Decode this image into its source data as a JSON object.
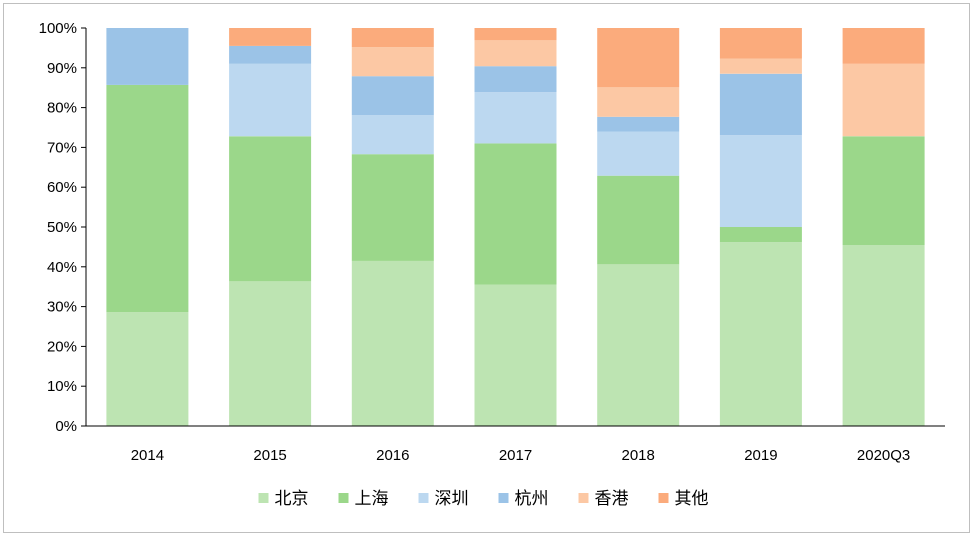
{
  "chart_data": {
    "type": "bar",
    "stacked": true,
    "percent": true,
    "categories": [
      "2014",
      "2015",
      "2016",
      "2017",
      "2018",
      "2019",
      "2020Q3"
    ],
    "series": [
      {
        "name": "北京",
        "color": "#bde4b2",
        "values": [
          28.6,
          36.4,
          41.5,
          35.5,
          40.7,
          46.2,
          45.5
        ]
      },
      {
        "name": "上海",
        "color": "#9bd78a",
        "values": [
          57.1,
          36.4,
          26.8,
          35.5,
          22.2,
          3.8,
          27.3
        ]
      },
      {
        "name": "深圳",
        "color": "#bcd8f0",
        "values": [
          0,
          18.2,
          9.8,
          12.9,
          11.1,
          23.1,
          0
        ]
      },
      {
        "name": "杭州",
        "color": "#9bc3e7",
        "values": [
          14.3,
          4.5,
          9.8,
          6.5,
          3.7,
          15.4,
          0
        ]
      },
      {
        "name": "香港",
        "color": "#fcc8a4",
        "values": [
          0,
          0,
          7.3,
          6.5,
          7.4,
          3.8,
          18.2
        ]
      },
      {
        "name": "其他",
        "color": "#fbab7c",
        "values": [
          0,
          4.5,
          4.8,
          3.1,
          14.9,
          7.7,
          9.0
        ]
      }
    ],
    "ylim": [
      0,
      100
    ],
    "yticks": [
      "0%",
      "10%",
      "20%",
      "30%",
      "40%",
      "50%",
      "60%",
      "70%",
      "80%",
      "90%",
      "100%"
    ],
    "grid": false,
    "legend": "bottom"
  }
}
